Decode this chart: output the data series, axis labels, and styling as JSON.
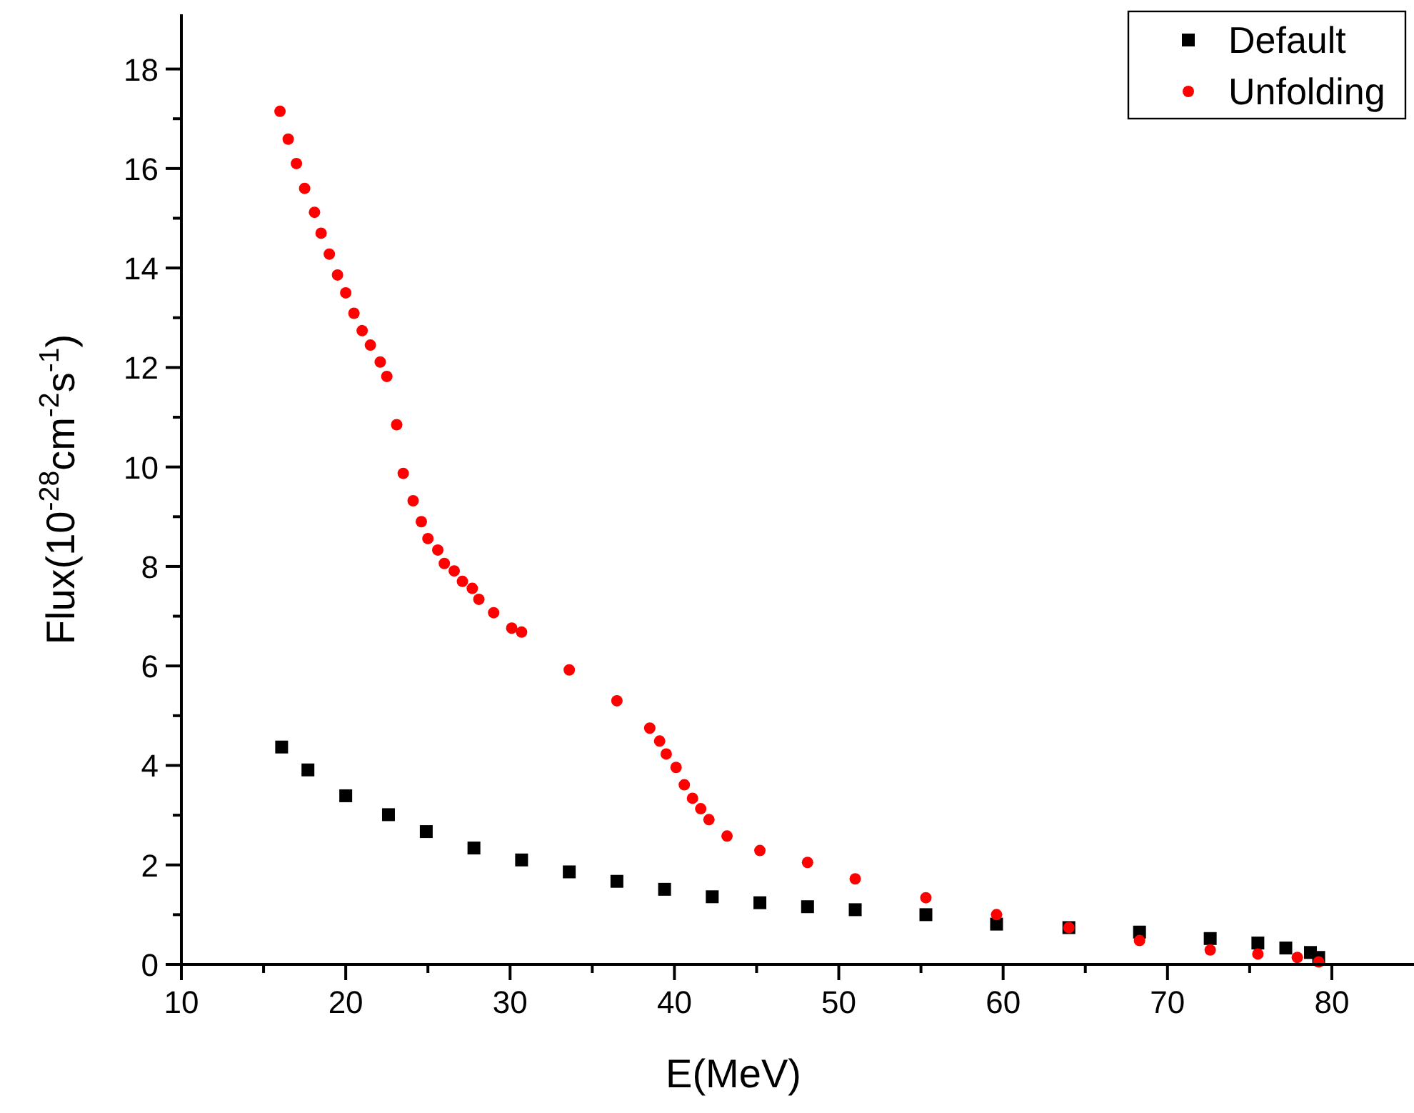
{
  "chart_data": {
    "type": "scatter",
    "xlabel": "E(MeV)",
    "ylabel": "Flux(10$^{-28}$cm$^{-2}$s$^{-1}$)",
    "xlim": [
      10,
      85
    ],
    "ylim": [
      0,
      19.1
    ],
    "xticks": [
      10,
      {
        "value": 15,
        "label": null
      },
      20,
      {
        "value": 25,
        "label": null
      },
      30,
      {
        "value": 35,
        "label": null
      },
      40,
      {
        "value": 45,
        "label": null
      },
      50,
      {
        "value": 55,
        "label": null
      },
      60,
      {
        "value": 65,
        "label": null
      },
      70,
      {
        "value": 75,
        "label": null
      },
      80
    ],
    "yticks": [
      0,
      {
        "value": 1,
        "label": null
      },
      2,
      {
        "value": 3,
        "label": null
      },
      4,
      {
        "value": 5,
        "label": null
      },
      6,
      {
        "value": 7,
        "label": null
      },
      8,
      {
        "value": 9,
        "label": null
      },
      10,
      {
        "value": 11,
        "label": null
      },
      12,
      {
        "value": 13,
        "label": null
      },
      14,
      {
        "value": 15,
        "label": null
      },
      16,
      {
        "value": 17,
        "label": null
      },
      18
    ],
    "grid": false,
    "legend": "top right",
    "series": [
      {
        "name": "Default",
        "color": "#000000",
        "marker": "square",
        "x": [
          16.1,
          17.7,
          20.0,
          22.6,
          24.9,
          27.8,
          30.7,
          33.6,
          36.5,
          39.4,
          42.3,
          45.2,
          48.1,
          51.0,
          55.3,
          59.6,
          64.0,
          68.3,
          72.6,
          75.5,
          77.2,
          78.7,
          79.2
        ],
        "values": [
          4.37,
          3.91,
          3.39,
          3.01,
          2.67,
          2.34,
          2.1,
          1.86,
          1.67,
          1.51,
          1.36,
          1.24,
          1.16,
          1.1,
          1.0,
          0.81,
          0.74,
          0.65,
          0.52,
          0.43,
          0.33,
          0.24,
          0.14
        ]
      },
      {
        "name": "Unfolding",
        "color": "#ff0000",
        "marker": "circle",
        "x": [
          16.0,
          16.5,
          17.0,
          17.5,
          18.1,
          18.5,
          19.0,
          19.5,
          20.0,
          20.5,
          21.0,
          21.5,
          22.1,
          22.5,
          23.1,
          23.5,
          24.1,
          24.6,
          25.0,
          25.6,
          26.0,
          26.6,
          27.1,
          27.7,
          28.1,
          29.0,
          30.1,
          30.7,
          33.6,
          36.5,
          38.5,
          39.1,
          39.5,
          40.1,
          40.6,
          41.1,
          41.6,
          42.1,
          43.2,
          45.2,
          48.1,
          51.0,
          55.3,
          59.6,
          64.0,
          68.3,
          72.6,
          75.5,
          77.9,
          79.2
        ],
        "values": [
          17.15,
          16.59,
          16.1,
          15.6,
          15.12,
          14.7,
          14.28,
          13.86,
          13.5,
          13.09,
          12.74,
          12.45,
          12.11,
          11.82,
          10.85,
          9.87,
          9.32,
          8.9,
          8.56,
          8.33,
          8.06,
          7.91,
          7.7,
          7.56,
          7.34,
          7.07,
          6.76,
          6.68,
          5.92,
          5.3,
          4.75,
          4.49,
          4.23,
          3.96,
          3.61,
          3.34,
          3.13,
          2.91,
          2.58,
          2.29,
          2.05,
          1.72,
          1.34,
          1.0,
          0.74,
          0.48,
          0.29,
          0.21,
          0.14,
          0.05
        ]
      }
    ]
  }
}
